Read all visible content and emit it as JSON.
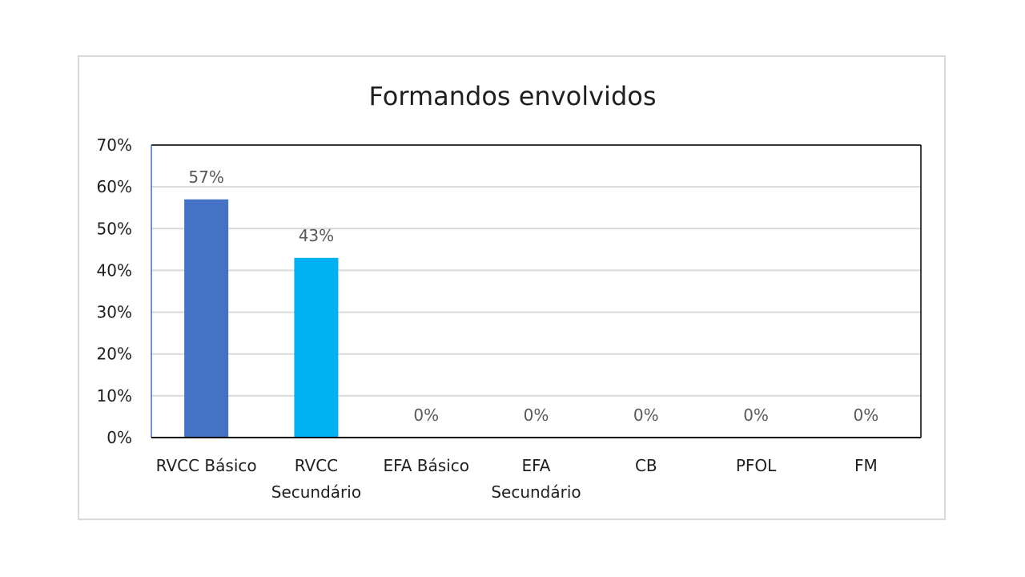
{
  "chart_data": {
    "type": "bar",
    "title": "Formandos envolvidos",
    "categories": [
      [
        "RVCC Básico"
      ],
      [
        "RVCC",
        "Secundário"
      ],
      [
        "EFA Básico"
      ],
      [
        "EFA",
        "Secundário"
      ],
      [
        "CB"
      ],
      [
        "PFOL"
      ],
      [
        "FM"
      ]
    ],
    "values": [
      57,
      43,
      0,
      0,
      0,
      0,
      0
    ],
    "data_labels": [
      "57%",
      "43%",
      "0%",
      "0%",
      "0%",
      "0%",
      "0%"
    ],
    "bar_colors": [
      "#4472C4",
      "#00B0F0",
      "#4472C4",
      "#4472C4",
      "#4472C4",
      "#4472C4",
      "#4472C4"
    ],
    "ylim": [
      0,
      70
    ],
    "yticks": [
      "0%",
      "10%",
      "20%",
      "30%",
      "40%",
      "50%",
      "60%",
      "70%"
    ],
    "grid": true,
    "xlabel": "",
    "ylabel": ""
  }
}
